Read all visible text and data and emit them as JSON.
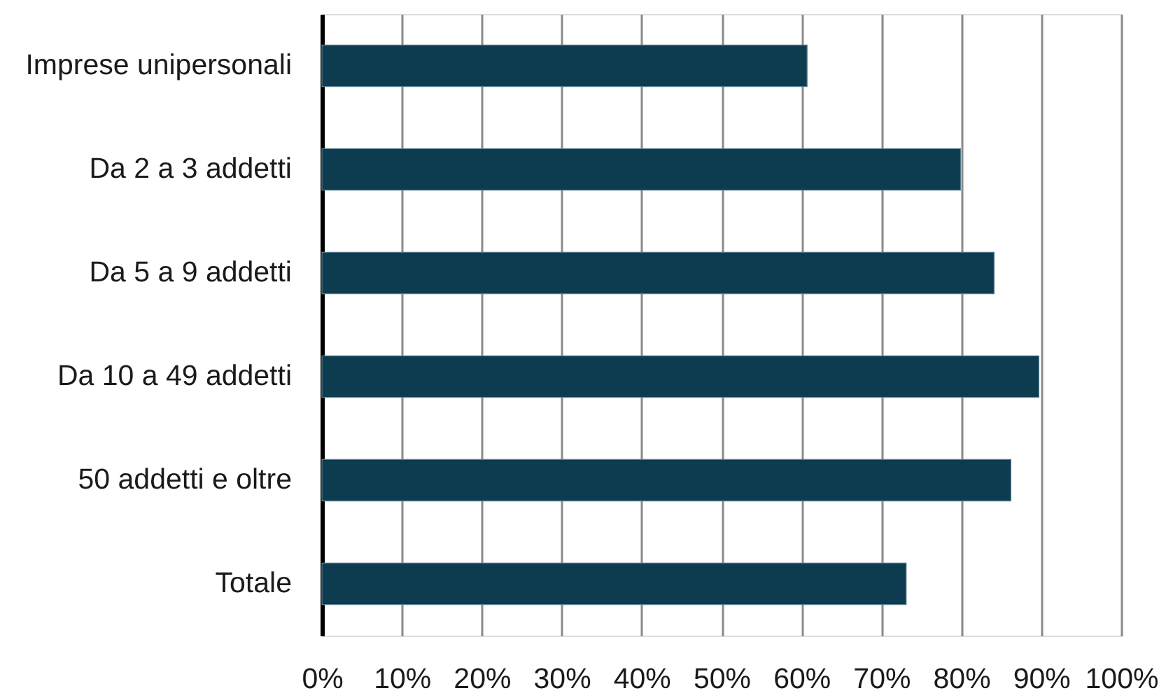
{
  "chart_data": {
    "type": "bar",
    "orientation": "horizontal",
    "categories": [
      "Imprese unipersonali",
      "Da 2 a 3 addetti",
      "Da 5 a 9 addetti",
      "Da 10 a 49 addetti",
      "50 addetti e oltre",
      "Totale"
    ],
    "values": [
      60.7,
      79.9,
      84.1,
      89.7,
      86.2,
      73.1
    ],
    "color": "#0d3b50",
    "xlim": [
      0,
      100
    ],
    "xticks": [
      {
        "value": 0,
        "label": "0%"
      },
      {
        "value": 10,
        "label": "10%"
      },
      {
        "value": 20,
        "label": "20%"
      },
      {
        "value": 30,
        "label": "30%"
      },
      {
        "value": 40,
        "label": "40%"
      },
      {
        "value": 50,
        "label": "50%"
      },
      {
        "value": 60,
        "label": "60%"
      },
      {
        "value": 70,
        "label": "70%"
      },
      {
        "value": 80,
        "label": "80%"
      },
      {
        "value": 90,
        "label": "90%"
      },
      {
        "value": 100,
        "label": "100%"
      }
    ],
    "grid": "x"
  }
}
